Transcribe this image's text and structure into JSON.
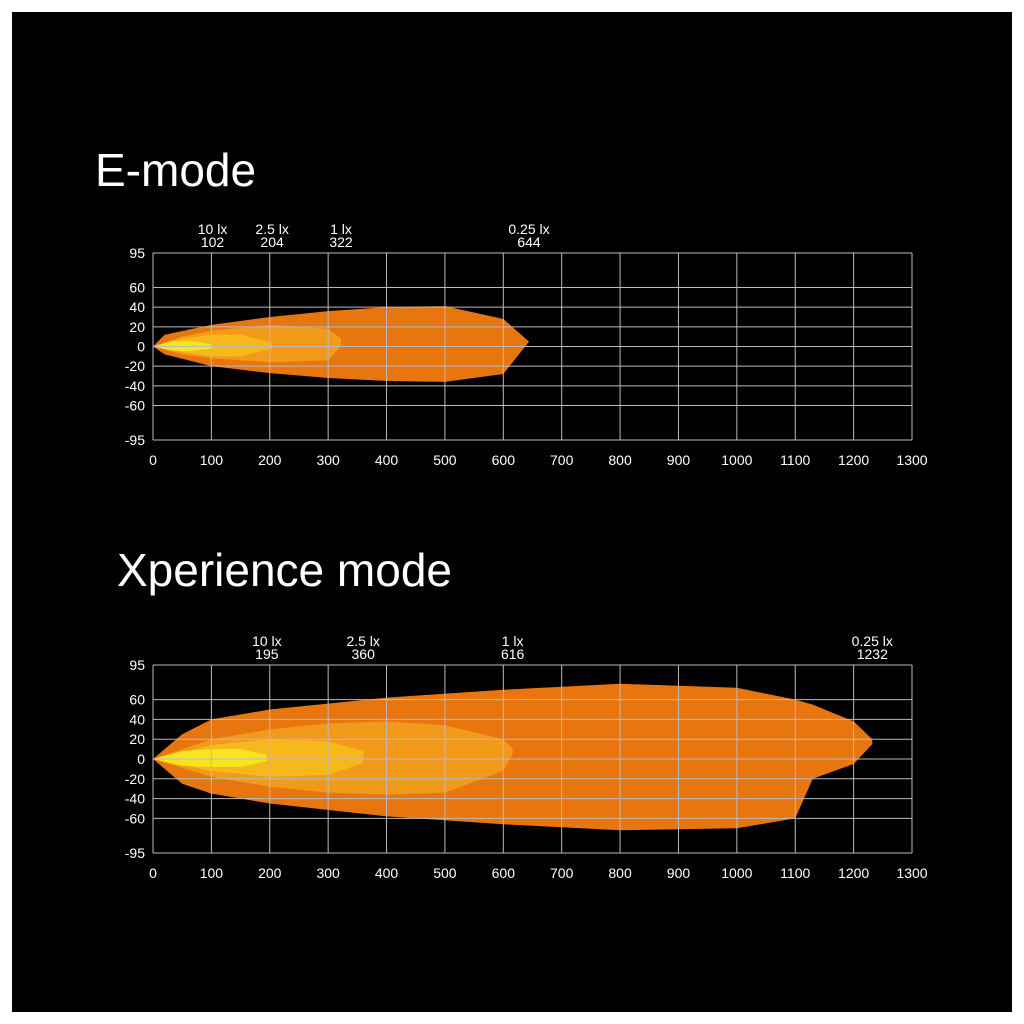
{
  "chart_data": [
    {
      "type": "isolux",
      "title": "E-mode",
      "xlim": [
        0,
        1300
      ],
      "ylim": [
        -95,
        95
      ],
      "xticks": [
        0,
        100,
        200,
        300,
        400,
        500,
        600,
        700,
        800,
        900,
        1000,
        1100,
        1200,
        1300
      ],
      "yticks": [
        95,
        60,
        40,
        20,
        0,
        -20,
        -40,
        -60,
        -95
      ],
      "grid": true,
      "series": [
        {
          "name": "0.25 lx",
          "distance": 644,
          "color": "#e8760f",
          "x": [
            0,
            20,
            100,
            200,
            300,
            400,
            500,
            600,
            644
          ],
          "upper": [
            0,
            12,
            22,
            30,
            36,
            40,
            41,
            28,
            5
          ],
          "lower": [
            0,
            -8,
            -20,
            -27,
            -32,
            -35,
            -36,
            -28,
            5
          ]
        },
        {
          "name": "1 lx",
          "distance": 322,
          "color": "#f29a1a",
          "x": [
            0,
            50,
            100,
            200,
            300,
            322
          ],
          "upper": [
            0,
            10,
            16,
            22,
            18,
            8
          ],
          "lower": [
            0,
            -8,
            -12,
            -16,
            -14,
            0
          ]
        },
        {
          "name": "2.5 lx",
          "distance": 204,
          "color": "#f7b81c",
          "x": [
            0,
            50,
            100,
            150,
            204
          ],
          "upper": [
            0,
            8,
            12,
            12,
            4
          ],
          "lower": [
            0,
            -6,
            -10,
            -10,
            -2
          ]
        },
        {
          "name": "10 lx",
          "distance": 102,
          "color": "#f8e61c",
          "x": [
            0,
            30,
            60,
            102
          ],
          "upper": [
            0,
            5,
            6,
            2
          ],
          "lower": [
            0,
            -4,
            -5,
            -2
          ]
        }
      ]
    },
    {
      "type": "isolux",
      "title": "Xperience mode",
      "xlim": [
        0,
        1300
      ],
      "ylim": [
        -95,
        95
      ],
      "xticks": [
        0,
        100,
        200,
        300,
        400,
        500,
        600,
        700,
        800,
        900,
        1000,
        1100,
        1200,
        1300
      ],
      "yticks": [
        95,
        60,
        40,
        20,
        0,
        -20,
        -40,
        -60,
        -95
      ],
      "grid": true,
      "series": [
        {
          "name": "0.25 lx",
          "distance": 1232,
          "color": "#e8760f",
          "x": [
            0,
            50,
            100,
            200,
            400,
            600,
            800,
            1000,
            1100,
            1130,
            1200,
            1232
          ],
          "upper": [
            0,
            25,
            40,
            50,
            62,
            70,
            76,
            72,
            60,
            55,
            38,
            20
          ],
          "lower": [
            0,
            -25,
            -35,
            -45,
            -58,
            -66,
            -72,
            -70,
            -60,
            -20,
            -5,
            15
          ]
        },
        {
          "name": "1 lx",
          "distance": 616,
          "color": "#f29a1a",
          "x": [
            0,
            100,
            200,
            300,
            400,
            500,
            600,
            616
          ],
          "upper": [
            0,
            20,
            30,
            36,
            38,
            34,
            20,
            10
          ],
          "lower": [
            0,
            -18,
            -28,
            -34,
            -36,
            -34,
            -12,
            5
          ]
        },
        {
          "name": "2.5 lx",
          "distance": 360,
          "color": "#f7b81c",
          "x": [
            0,
            100,
            200,
            300,
            360
          ],
          "upper": [
            0,
            14,
            20,
            18,
            8
          ],
          "lower": [
            0,
            -12,
            -18,
            -16,
            -4
          ]
        },
        {
          "name": "10 lx",
          "distance": 195,
          "color": "#f8e61c",
          "x": [
            0,
            50,
            100,
            150,
            195
          ],
          "upper": [
            0,
            8,
            10,
            10,
            4
          ],
          "lower": [
            0,
            -7,
            -8,
            -8,
            -2
          ]
        }
      ]
    }
  ]
}
